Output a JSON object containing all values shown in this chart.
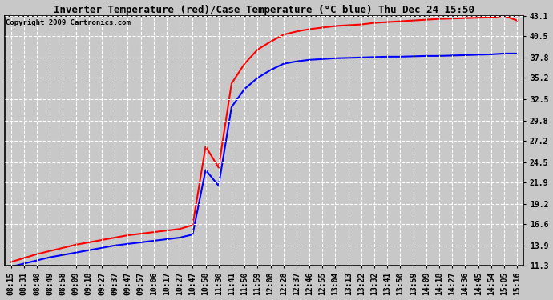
{
  "title": "Inverter Temperature (red)/Case Temperature (°C blue) Thu Dec 24 15:50",
  "copyright": "Copyright 2009 Cartronics.com",
  "background_color": "#c8c8c8",
  "plot_bg_color": "#c8c8c8",
  "grid_color": "white",
  "yticks": [
    11.3,
    13.9,
    16.6,
    19.2,
    21.9,
    24.5,
    27.2,
    29.8,
    32.5,
    35.2,
    37.8,
    40.5,
    43.1
  ],
  "xtick_labels": [
    "08:15",
    "08:31",
    "08:40",
    "08:49",
    "08:58",
    "09:09",
    "09:18",
    "09:27",
    "09:37",
    "09:47",
    "09:57",
    "10:06",
    "10:17",
    "10:27",
    "10:47",
    "10:58",
    "11:30",
    "11:41",
    "11:50",
    "11:59",
    "12:08",
    "12:28",
    "12:37",
    "12:46",
    "12:55",
    "13:04",
    "13:13",
    "13:22",
    "13:32",
    "13:41",
    "13:50",
    "13:59",
    "14:09",
    "14:18",
    "14:27",
    "14:36",
    "14:45",
    "14:54",
    "15:05",
    "15:16"
  ],
  "red_y": [
    11.8,
    12.3,
    12.8,
    13.2,
    13.6,
    14.0,
    14.3,
    14.6,
    14.9,
    15.2,
    15.4,
    15.6,
    15.8,
    16.0,
    16.5,
    26.5,
    23.8,
    34.5,
    37.0,
    38.8,
    39.8,
    40.7,
    41.1,
    41.4,
    41.6,
    41.8,
    41.9,
    42.0,
    42.2,
    42.3,
    42.4,
    42.5,
    42.6,
    42.7,
    42.75,
    42.8,
    42.85,
    42.9,
    43.1,
    42.5
  ],
  "blue_y": [
    11.2,
    11.6,
    12.0,
    12.4,
    12.7,
    13.0,
    13.3,
    13.6,
    13.9,
    14.1,
    14.3,
    14.5,
    14.7,
    14.9,
    15.3,
    23.5,
    21.5,
    31.5,
    33.8,
    35.2,
    36.2,
    37.0,
    37.3,
    37.5,
    37.6,
    37.7,
    37.75,
    37.8,
    37.85,
    37.9,
    37.9,
    37.95,
    38.0,
    38.0,
    38.05,
    38.1,
    38.15,
    38.2,
    38.3,
    38.3
  ],
  "line_width": 1.5,
  "title_fontsize": 9,
  "tick_fontsize": 7,
  "copyright_fontsize": 6.5,
  "figwidth": 6.9,
  "figheight": 3.75,
  "dpi": 100
}
